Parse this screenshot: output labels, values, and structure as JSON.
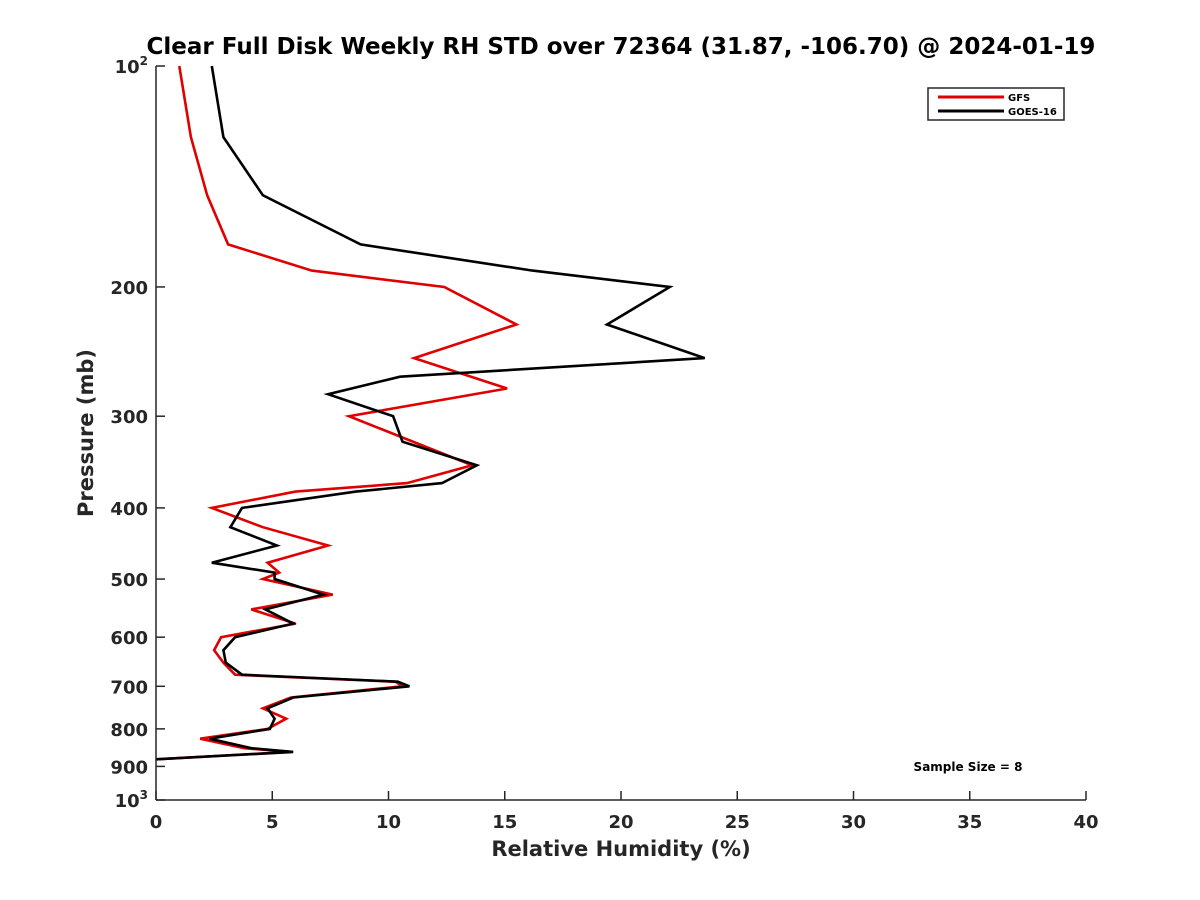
{
  "chart_data": {
    "type": "line",
    "title": "Clear Full Disk Weekly RH STD over 72364 (31.87, -106.70) @ 2024-01-19",
    "xlabel": "Relative Humidity (%)",
    "ylabel": "Pressure (mb)",
    "xlim": [
      0,
      40
    ],
    "ylim": [
      100,
      1000
    ],
    "y_scale": "log",
    "y_reversed": true,
    "x_ticks": [
      0,
      5,
      10,
      15,
      20,
      25,
      30,
      35,
      40
    ],
    "x_tick_labels": [
      "0",
      "5",
      "10",
      "15",
      "20",
      "25",
      "30",
      "35",
      "40"
    ],
    "y_ticks": [
      100,
      200,
      300,
      400,
      500,
      600,
      700,
      800,
      900,
      1000
    ],
    "y_tick_labels": [
      {
        "base": "10",
        "sup": "2"
      },
      {
        "base": "200",
        "sup": ""
      },
      {
        "base": "300",
        "sup": ""
      },
      {
        "base": "400",
        "sup": ""
      },
      {
        "base": "500",
        "sup": ""
      },
      {
        "base": "600",
        "sup": ""
      },
      {
        "base": "700",
        "sup": ""
      },
      {
        "base": "800",
        "sup": ""
      },
      {
        "base": "900",
        "sup": ""
      },
      {
        "base": "10",
        "sup": "3"
      }
    ],
    "grid": false,
    "legend_position": "top-right",
    "annotation": "Sample Size = 8",
    "series": [
      {
        "name": "GFS",
        "color": "#e00000",
        "points": [
          {
            "x": 1.0,
            "p": 100
          },
          {
            "x": 1.5,
            "p": 125
          },
          {
            "x": 2.2,
            "p": 150
          },
          {
            "x": 3.1,
            "p": 175
          },
          {
            "x": 6.7,
            "p": 190
          },
          {
            "x": 12.4,
            "p": 200
          },
          {
            "x": 15.5,
            "p": 225
          },
          {
            "x": 11.1,
            "p": 250
          },
          {
            "x": 15.1,
            "p": 275
          },
          {
            "x": 8.3,
            "p": 300
          },
          {
            "x": 13.6,
            "p": 350
          },
          {
            "x": 10.8,
            "p": 370
          },
          {
            "x": 6.0,
            "p": 380
          },
          {
            "x": 2.4,
            "p": 400
          },
          {
            "x": 4.6,
            "p": 425
          },
          {
            "x": 7.4,
            "p": 450
          },
          {
            "x": 4.8,
            "p": 475
          },
          {
            "x": 5.3,
            "p": 490
          },
          {
            "x": 4.6,
            "p": 500
          },
          {
            "x": 7.6,
            "p": 525
          },
          {
            "x": 4.1,
            "p": 550
          },
          {
            "x": 6.0,
            "p": 575
          },
          {
            "x": 2.8,
            "p": 600
          },
          {
            "x": 2.5,
            "p": 625
          },
          {
            "x": 2.9,
            "p": 650
          },
          {
            "x": 3.4,
            "p": 675
          },
          {
            "x": 10.3,
            "p": 690
          },
          {
            "x": 10.6,
            "p": 700
          },
          {
            "x": 5.8,
            "p": 725
          },
          {
            "x": 4.6,
            "p": 750
          },
          {
            "x": 5.6,
            "p": 775
          },
          {
            "x": 4.8,
            "p": 800
          },
          {
            "x": 1.9,
            "p": 825
          },
          {
            "x": 3.8,
            "p": 850
          },
          {
            "x": 5.8,
            "p": 860
          },
          {
            "x": 0.0,
            "p": 880
          }
        ]
      },
      {
        "name": "GOES-16",
        "color": "#000000",
        "points": [
          {
            "x": 2.4,
            "p": 100
          },
          {
            "x": 2.9,
            "p": 125
          },
          {
            "x": 4.6,
            "p": 150
          },
          {
            "x": 8.8,
            "p": 175
          },
          {
            "x": 16.2,
            "p": 190
          },
          {
            "x": 22.1,
            "p": 200
          },
          {
            "x": 19.4,
            "p": 225
          },
          {
            "x": 23.6,
            "p": 250
          },
          {
            "x": 10.5,
            "p": 265
          },
          {
            "x": 7.4,
            "p": 280
          },
          {
            "x": 10.2,
            "p": 300
          },
          {
            "x": 10.6,
            "p": 325
          },
          {
            "x": 13.8,
            "p": 350
          },
          {
            "x": 12.3,
            "p": 370
          },
          {
            "x": 8.6,
            "p": 380
          },
          {
            "x": 3.7,
            "p": 400
          },
          {
            "x": 3.2,
            "p": 425
          },
          {
            "x": 5.2,
            "p": 450
          },
          {
            "x": 2.4,
            "p": 475
          },
          {
            "x": 5.1,
            "p": 490
          },
          {
            "x": 5.1,
            "p": 500
          },
          {
            "x": 7.2,
            "p": 525
          },
          {
            "x": 4.7,
            "p": 550
          },
          {
            "x": 5.9,
            "p": 575
          },
          {
            "x": 3.4,
            "p": 600
          },
          {
            "x": 2.9,
            "p": 625
          },
          {
            "x": 3.0,
            "p": 650
          },
          {
            "x": 3.7,
            "p": 675
          },
          {
            "x": 10.4,
            "p": 690
          },
          {
            "x": 10.9,
            "p": 700
          },
          {
            "x": 5.9,
            "p": 725
          },
          {
            "x": 4.8,
            "p": 750
          },
          {
            "x": 5.1,
            "p": 775
          },
          {
            "x": 4.9,
            "p": 800
          },
          {
            "x": 2.3,
            "p": 825
          },
          {
            "x": 4.1,
            "p": 850
          },
          {
            "x": 5.9,
            "p": 860
          },
          {
            "x": 0.0,
            "p": 880
          }
        ]
      }
    ]
  }
}
